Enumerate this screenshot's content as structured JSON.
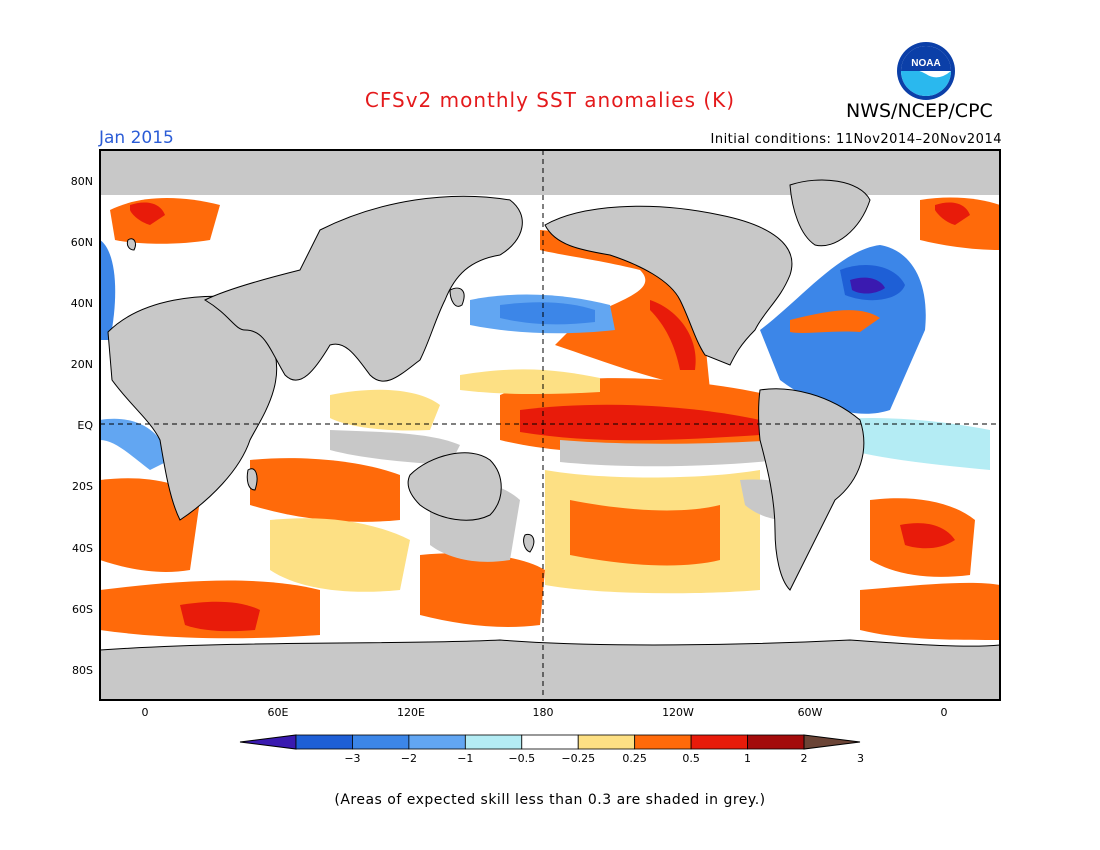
{
  "header": {
    "title": "CFSv2 monthly SST anomalies (K)",
    "organization": "NWS/NCEP/CPC",
    "logo_text": "NOAA",
    "month": "Jan 2015",
    "initial_conditions": "Initial conditions: 11Nov2014–20Nov2014"
  },
  "map": {
    "lat_labels": [
      "80N",
      "60N",
      "40N",
      "20N",
      "EQ",
      "20S",
      "40S",
      "60S",
      "80S"
    ],
    "lon_labels": [
      "0",
      "60E",
      "120E",
      "180",
      "120W",
      "60W",
      "0"
    ],
    "colors": {
      "land": "#c8c8c8",
      "frame": "#000000"
    }
  },
  "legend": {
    "labels": [
      "−3",
      "−2",
      "−1",
      "−0.5",
      "−0.25",
      "0.25",
      "0.5",
      "1",
      "2",
      "3"
    ],
    "colors": [
      "#3a1ab0",
      "#1e5fd6",
      "#3c86e8",
      "#62a6f2",
      "#b4ecf4",
      "#ffffff",
      "#fde084",
      "#ff6a0a",
      "#e81b0a",
      "#a30b0b",
      "#6b4436"
    ]
  },
  "footer": {
    "note": "(Areas of expected skill less than 0.3 are shaded in grey.)"
  }
}
